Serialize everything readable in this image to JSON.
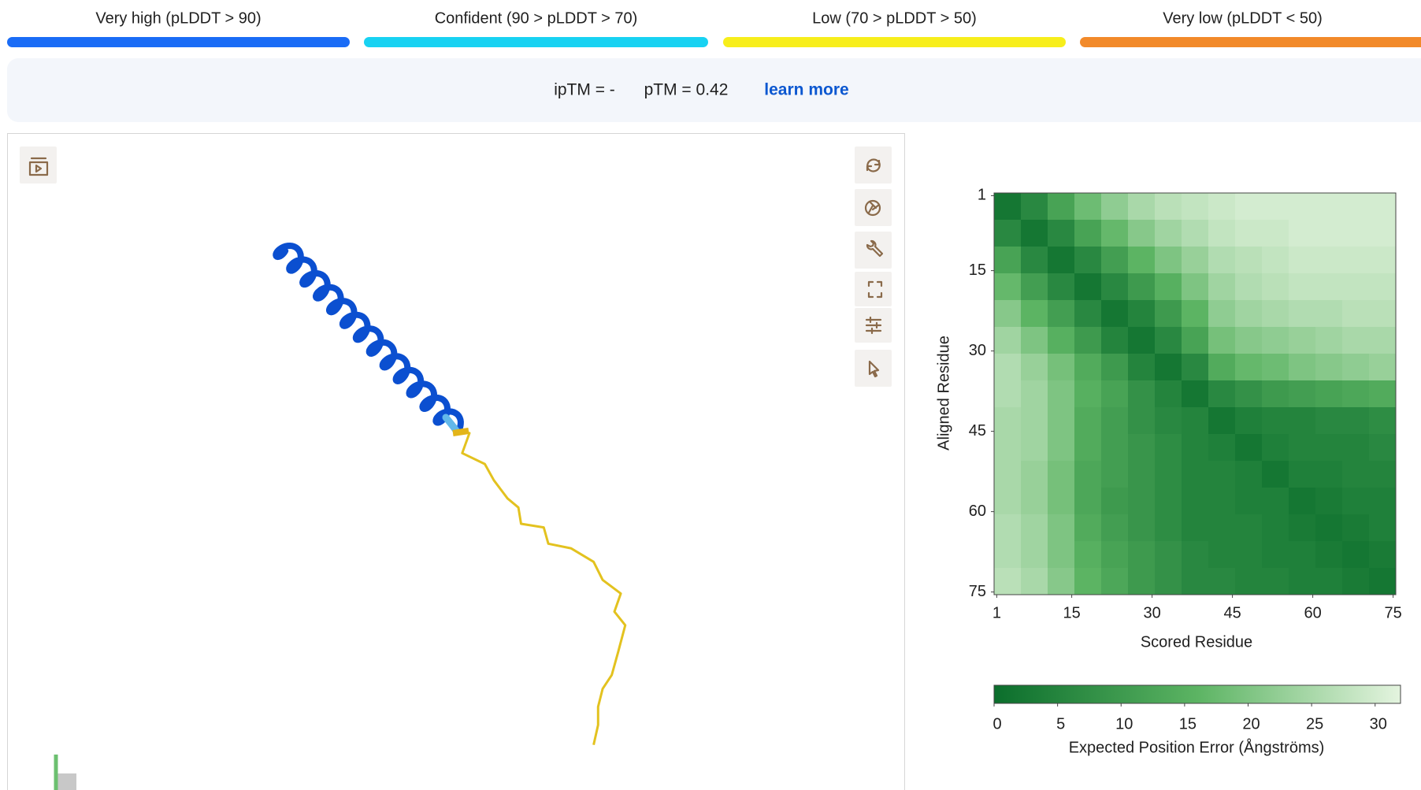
{
  "legend": [
    {
      "label": "Very high (pLDDT > 90)",
      "color": "#1a6cf6"
    },
    {
      "label": "Confident (90 > pLDDT > 70)",
      "color": "#18d2f2"
    },
    {
      "label": "Low (70 > pLDDT > 50)",
      "color": "#f7ee1b"
    },
    {
      "label": "Very low (pLDDT < 50)",
      "color": "#f28a2a"
    }
  ],
  "scores": {
    "iptm": "ipTM = -",
    "ptm": "pTM = 0.42",
    "link": "learn more"
  },
  "pae": {
    "type": "heatmap",
    "xlabel": "Scored Residue",
    "ylabel": "Aligned Residue",
    "xlim": [
      0.5,
      75.5
    ],
    "ylim": [
      0.5,
      75.5
    ],
    "xticks": [
      1,
      15,
      30,
      45,
      60,
      75
    ],
    "yticks": [
      1,
      15,
      30,
      45,
      60,
      75
    ],
    "bins": [
      0.5,
      5.5,
      10.5,
      15.5,
      20.5,
      25.5,
      30.5,
      35.5,
      40.5,
      45.5,
      50.5,
      55.5,
      60.5,
      65.5,
      70.5,
      75.5
    ],
    "matrix": [
      [
        2,
        6,
        12,
        18,
        22,
        25,
        27,
        28,
        29,
        30,
        30,
        30,
        30,
        30,
        30
      ],
      [
        6,
        2,
        6,
        12,
        17,
        21,
        24,
        26,
        28,
        29,
        29,
        30,
        30,
        30,
        30
      ],
      [
        12,
        6,
        2,
        6,
        11,
        16,
        20,
        23,
        26,
        27,
        28,
        29,
        29,
        29,
        29
      ],
      [
        17,
        11,
        6,
        2,
        6,
        10,
        15,
        20,
        24,
        26,
        27,
        28,
        28,
        28,
        28
      ],
      [
        21,
        16,
        11,
        6,
        2,
        5,
        10,
        16,
        22,
        24,
        25,
        26,
        26,
        27,
        27
      ],
      [
        24,
        20,
        15,
        10,
        5,
        2,
        6,
        12,
        19,
        21,
        22,
        23,
        24,
        25,
        25
      ],
      [
        26,
        23,
        19,
        14,
        10,
        5,
        2,
        6,
        14,
        17,
        18,
        20,
        21,
        22,
        23
      ],
      [
        26,
        24,
        20,
        15,
        12,
        8,
        5,
        2,
        6,
        8,
        10,
        11,
        12,
        13,
        14
      ],
      [
        25,
        24,
        20,
        14,
        11,
        8,
        6,
        5,
        2,
        4,
        5,
        5,
        6,
        6,
        7
      ],
      [
        25,
        24,
        20,
        14,
        11,
        9,
        7,
        5,
        4,
        2,
        4,
        5,
        5,
        5,
        6
      ],
      [
        25,
        23,
        19,
        13,
        11,
        9,
        7,
        5,
        5,
        4,
        2,
        4,
        4,
        5,
        5
      ],
      [
        25,
        23,
        19,
        13,
        10,
        9,
        7,
        5,
        5,
        4,
        4,
        2,
        3,
        4,
        4
      ],
      [
        26,
        24,
        20,
        14,
        11,
        9,
        7,
        5,
        5,
        5,
        4,
        3,
        2,
        3,
        4
      ],
      [
        26,
        24,
        20,
        15,
        12,
        10,
        8,
        6,
        5,
        5,
        4,
        4,
        3,
        2,
        3
      ],
      [
        27,
        25,
        21,
        16,
        13,
        10,
        8,
        6,
        6,
        5,
        5,
        4,
        4,
        3,
        2
      ]
    ],
    "colormap": [
      "#0b6e2c",
      "#5cb463",
      "#e4f4df"
    ],
    "colorbar": {
      "label": "Expected Position Error (Ångströms)",
      "lim": [
        0,
        32
      ],
      "ticks": [
        0,
        5,
        10,
        15,
        20,
        25,
        30
      ]
    }
  }
}
